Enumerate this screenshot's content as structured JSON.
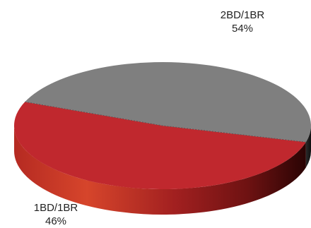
{
  "chart_data": {
    "type": "pie",
    "style": "3d",
    "categories": [
      "2BD/1BR",
      "1BD/1BR"
    ],
    "values": [
      54,
      46
    ],
    "value_labels": [
      "54%",
      "46%"
    ],
    "colors": [
      "#7f7f7f",
      "#c0282e"
    ],
    "title": "",
    "legend": "none"
  }
}
